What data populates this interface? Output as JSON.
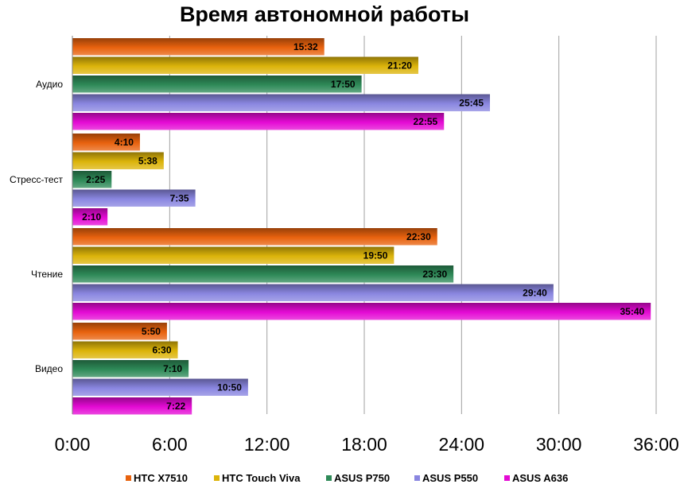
{
  "chart_data": {
    "type": "bar",
    "orientation": "horizontal",
    "title": "Время автономной работы",
    "xlabel": "",
    "ylabel": "",
    "categories": [
      "Аудио",
      "Стресс-тест",
      "Чтение",
      "Видео"
    ],
    "x_ticks": [
      "0:00",
      "6:00",
      "12:00",
      "18:00",
      "24:00",
      "30:00",
      "36:00"
    ],
    "xlim_minutes": [
      0,
      2160
    ],
    "grid": "vertical",
    "legend_position": "bottom",
    "series": [
      {
        "name": "HTC X7510",
        "color": "#e8620e",
        "minutes": [
          932,
          250,
          1350,
          350
        ],
        "labels": [
          "15:32",
          "4:10",
          "22:30",
          "5:50"
        ]
      },
      {
        "name": "HTC Touch Viva",
        "color": "#dcb40a",
        "minutes": [
          1280,
          338,
          1190,
          390
        ],
        "labels": [
          "21:20",
          "5:38",
          "19:50",
          "6:30"
        ]
      },
      {
        "name": "ASUS P750",
        "color": "#2e8a58",
        "minutes": [
          1070,
          145,
          1410,
          430
        ],
        "labels": [
          "17:50",
          "2:25",
          "23:30",
          "7:10"
        ]
      },
      {
        "name": "ASUS P550",
        "color": "#8a86e0",
        "minutes": [
          1545,
          455,
          1780,
          650
        ],
        "labels": [
          "25:45",
          "7:35",
          "29:40",
          "10:50"
        ]
      },
      {
        "name": "ASUS A636",
        "color": "#e40ad4",
        "minutes": [
          1375,
          130,
          2140,
          442
        ],
        "labels": [
          "22:55",
          "2:10",
          "35:40",
          "7:22"
        ]
      }
    ]
  }
}
